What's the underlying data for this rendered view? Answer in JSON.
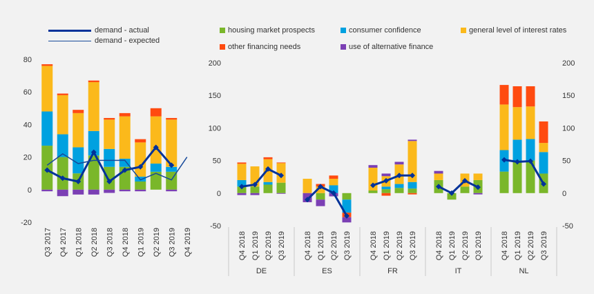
{
  "colors": {
    "housing": "#7ab72a",
    "consumer": "#00a1e0",
    "interest": "#fbb91b",
    "other": "#ff4b10",
    "alternative": "#7b3fb4",
    "actual": "#003299",
    "expected": "#16499a"
  },
  "legend": {
    "demand_actual": "demand - actual",
    "demand_expected": "demand - expected",
    "housing": "housing market prospects",
    "consumer": "consumer confidence",
    "interest": "general level of interest rates",
    "other": "other financing needs",
    "alternative": "use of alternative finance"
  },
  "chart_data": [
    {
      "type": "bar",
      "panel": "euro-area",
      "stacked": true,
      "categories": [
        "Q3 2017",
        "Q4 2017",
        "Q1 2018",
        "Q2 2018",
        "Q3 2018",
        "Q4 2018",
        "Q1 2019",
        "Q2 2019",
        "Q3 2019",
        "Q4 2019"
      ],
      "ylim": [
        -20,
        80
      ],
      "yticks": [
        "80",
        "60",
        "40",
        "20",
        "0",
        "-20"
      ],
      "series": [
        {
          "name": "housing market prospects",
          "key": "housing",
          "values": [
            27,
            20,
            10,
            21,
            14,
            14,
            5,
            11,
            11,
            null
          ]
        },
        {
          "name": "consumer confidence",
          "key": "consumer",
          "values": [
            21,
            14,
            16,
            15,
            11,
            5,
            3,
            5,
            3,
            null
          ]
        },
        {
          "name": "general level of interest rates",
          "key": "interest",
          "values": [
            28,
            24,
            21,
            30,
            18,
            26,
            21,
            29,
            29,
            null
          ]
        },
        {
          "name": "other financing needs",
          "key": "other",
          "values": [
            1,
            1,
            2,
            1,
            1,
            2,
            2,
            5,
            1,
            null
          ]
        },
        {
          "name": "use of alternative finance",
          "key": "alternative",
          "values": [
            -1,
            -4,
            -3,
            -3,
            -2,
            -1,
            -1,
            0,
            -1,
            null
          ]
        }
      ],
      "lines": [
        {
          "name": "demand - actual",
          "key": "actual",
          "values": [
            12,
            7,
            5,
            23,
            5,
            12,
            14,
            26,
            15,
            null
          ]
        },
        {
          "name": "demand - expected",
          "key": "expected",
          "values": [
            15,
            22,
            16,
            18,
            18,
            18,
            6,
            10,
            6,
            20
          ]
        }
      ]
    },
    {
      "type": "bar",
      "panel": "countries",
      "stacked": true,
      "groups": [
        "DE",
        "ES",
        "FR",
        "IT",
        "NL"
      ],
      "categories": [
        "Q4 2018",
        "Q1 2019",
        "Q2 2019",
        "Q3 2019"
      ],
      "ylim": [
        -50,
        200
      ],
      "yticks": [
        "200",
        "150",
        "100",
        "50",
        "0",
        "-50"
      ],
      "series": [
        {
          "name": "housing market prospects",
          "key": "housing",
          "values": [
            [
              10,
              10,
              13,
              16
            ],
            [
              0,
              -10,
              0,
              -10
            ],
            [
              4,
              6,
              8,
              7
            ],
            [
              20,
              -10,
              10,
              20
            ],
            [
              33,
              50,
              50,
              30
            ]
          ]
        },
        {
          "name": "consumer confidence",
          "key": "consumer",
          "values": [
            [
              10,
              0,
              4,
              0
            ],
            [
              0,
              0,
              12,
              -20
            ],
            [
              0,
              4,
              6,
              10
            ],
            [
              0,
              0,
              0,
              0
            ],
            [
              33,
              32,
              33,
              33
            ]
          ]
        },
        {
          "name": "general level of interest rates",
          "key": "interest",
          "values": [
            [
              25,
              31,
              35,
              30
            ],
            [
              22,
              10,
              10,
              0
            ],
            [
              35,
              16,
              30,
              63
            ],
            [
              10,
              0,
              20,
              10
            ],
            [
              70,
              50,
              50,
              14
            ]
          ]
        },
        {
          "name": "other financing needs",
          "key": "other",
          "values": [
            [
              2,
              0,
              3,
              1
            ],
            [
              0,
              4,
              5,
              -7
            ],
            [
              0,
              -4,
              0,
              -2
            ],
            [
              0,
              0,
              0,
              0
            ],
            [
              30,
              32,
              31,
              33
            ]
          ]
        },
        {
          "name": "use of alternative finance",
          "key": "alternative",
          "values": [
            [
              -3,
              -3,
              0,
              -1
            ],
            [
              -14,
              -10,
              -5,
              -8
            ],
            [
              4,
              4,
              4,
              2
            ],
            [
              4,
              0,
              0,
              -2
            ],
            [
              0,
              0,
              0,
              0
            ]
          ]
        }
      ],
      "lines": [
        {
          "name": "demand - actual",
          "key": "actual",
          "values": [
            [
              10,
              13,
              37,
              27
            ],
            [
              -10,
              10,
              0,
              -35
            ],
            [
              12,
              19,
              27,
              27
            ],
            [
              10,
              0,
              19,
              9
            ],
            [
              51,
              48,
              49,
              14
            ]
          ]
        }
      ]
    }
  ]
}
